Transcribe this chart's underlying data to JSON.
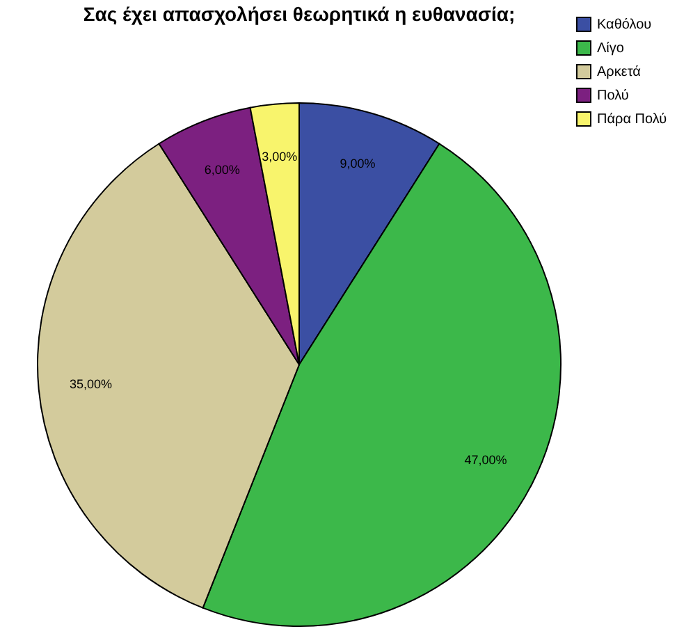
{
  "chart_data": {
    "type": "pie",
    "title": "Σας έχει απασχολήσει θεωρητικά η ευθανασία;",
    "categories": [
      "Καθόλου",
      "Λίγο",
      "Αρκετά",
      "Πολύ",
      "Πάρα Πολύ"
    ],
    "values": [
      9,
      47,
      35,
      6,
      3
    ],
    "value_labels": [
      "9,00%",
      "47,00%",
      "35,00%",
      "6,00%",
      "3,00%"
    ],
    "colors": [
      "#3b4fa3",
      "#3cb84a",
      "#d3cb9c",
      "#7c2080",
      "#f8f46c"
    ],
    "legend": "top right"
  }
}
